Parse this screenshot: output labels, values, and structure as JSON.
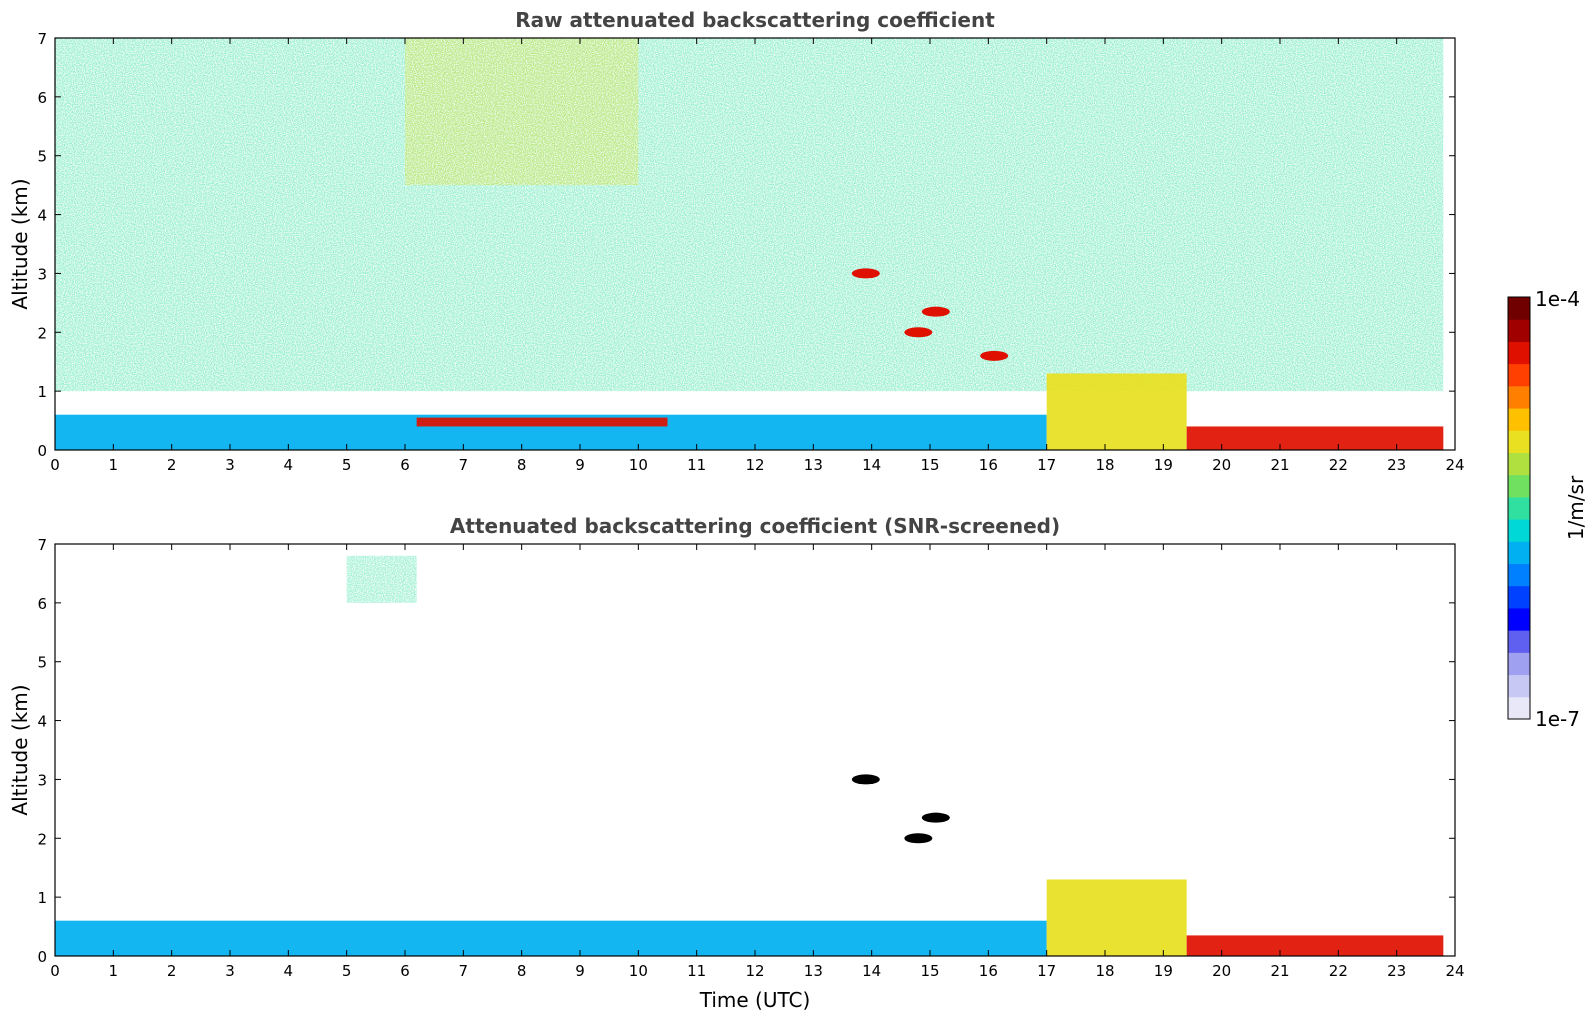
{
  "chart_data": [
    {
      "type": "heatmap",
      "title": "Raw attenuated backscattering coefficient",
      "xlabel": "",
      "ylabel": "Altitude (km)",
      "xlim": [
        0,
        24
      ],
      "ylim": [
        0,
        7
      ],
      "x_ticks": [
        "0",
        "1",
        "2",
        "3",
        "4",
        "5",
        "6",
        "7",
        "8",
        "9",
        "10",
        "11",
        "12",
        "13",
        "14",
        "15",
        "16",
        "17",
        "18",
        "19",
        "20",
        "21",
        "22",
        "23",
        "24"
      ],
      "y_ticks": [
        "0",
        "1",
        "2",
        "3",
        "4",
        "5",
        "6",
        "7"
      ],
      "features": [
        {
          "kind": "noise",
          "value": "mid",
          "altitude_range": [
            1.0,
            7.0
          ],
          "time_range": [
            0,
            23.8
          ]
        },
        {
          "kind": "noise-high",
          "value": "high",
          "altitude_range": [
            4.5,
            7.0
          ],
          "time_range": [
            6,
            10
          ]
        },
        {
          "kind": "boundary-layer",
          "value": "mixed",
          "altitude_range": [
            0,
            0.6
          ],
          "time_range": [
            0,
            17
          ]
        },
        {
          "kind": "boundary-layer-top",
          "value": "very-high",
          "altitude_range": [
            0.4,
            0.55
          ],
          "time_range": [
            6.2,
            10.5
          ]
        },
        {
          "kind": "convective-layer",
          "value": "high",
          "altitude_range": [
            0,
            1.3
          ],
          "time_range": [
            17,
            19.4
          ]
        },
        {
          "kind": "night-layer",
          "value": "very-high",
          "altitude_range": [
            0,
            0.4
          ],
          "time_range": [
            19.4,
            23.8
          ]
        },
        {
          "kind": "cloud",
          "value": "very-high",
          "time": 13.9,
          "altitude": 3.0
        },
        {
          "kind": "cloud",
          "value": "very-high",
          "time": 15.1,
          "altitude": 2.35
        },
        {
          "kind": "cloud",
          "value": "very-high",
          "time": 14.8,
          "altitude": 2.0
        },
        {
          "kind": "cloud",
          "value": "very-high",
          "time": 16.1,
          "altitude": 1.6
        }
      ]
    },
    {
      "type": "heatmap",
      "title": "Attenuated backscattering coefficient (SNR-screened)",
      "xlabel": "Time (UTC)",
      "ylabel": "Altitude (km)",
      "xlim": [
        0,
        24
      ],
      "ylim": [
        0,
        7
      ],
      "x_ticks": [
        "0",
        "1",
        "2",
        "3",
        "4",
        "5",
        "6",
        "7",
        "8",
        "9",
        "10",
        "11",
        "12",
        "13",
        "14",
        "15",
        "16",
        "17",
        "18",
        "19",
        "20",
        "21",
        "22",
        "23",
        "24"
      ],
      "y_ticks": [
        "0",
        "1",
        "2",
        "3",
        "4",
        "5",
        "6",
        "7"
      ],
      "features": [
        {
          "kind": "boundary-layer",
          "value": "mixed",
          "altitude_range": [
            0,
            0.6
          ],
          "time_range": [
            0,
            17
          ]
        },
        {
          "kind": "convective-layer",
          "value": "high",
          "altitude_range": [
            0,
            1.3
          ],
          "time_range": [
            17,
            19.4
          ]
        },
        {
          "kind": "night-layer",
          "value": "very-high",
          "altitude_range": [
            0,
            0.35
          ],
          "time_range": [
            19.4,
            23.8
          ]
        },
        {
          "kind": "cloud",
          "value": "saturated",
          "time": 13.9,
          "altitude": 3.0
        },
        {
          "kind": "cloud",
          "value": "saturated",
          "time": 15.1,
          "altitude": 2.35
        },
        {
          "kind": "cloud",
          "value": "saturated",
          "time": 14.8,
          "altitude": 2.0
        },
        {
          "kind": "speckles",
          "value": "mid",
          "time_range": [
            5,
            6.2
          ],
          "altitude_range": [
            6.0,
            6.8
          ]
        }
      ]
    }
  ],
  "colorbar": {
    "max_label": "1e-4",
    "min_label": "1e-7",
    "unit_label": "1/m/sr",
    "colors": [
      "#e8e8f8",
      "#c8c8f4",
      "#a0a0f0",
      "#6060f0",
      "#0000ff",
      "#0040ff",
      "#0080ff",
      "#00b0f0",
      "#00d8d8",
      "#30e0a0",
      "#70e060",
      "#b0e040",
      "#e8e020",
      "#ffc000",
      "#ff8000",
      "#ff4000",
      "#e01000",
      "#a00000",
      "#700000"
    ]
  }
}
